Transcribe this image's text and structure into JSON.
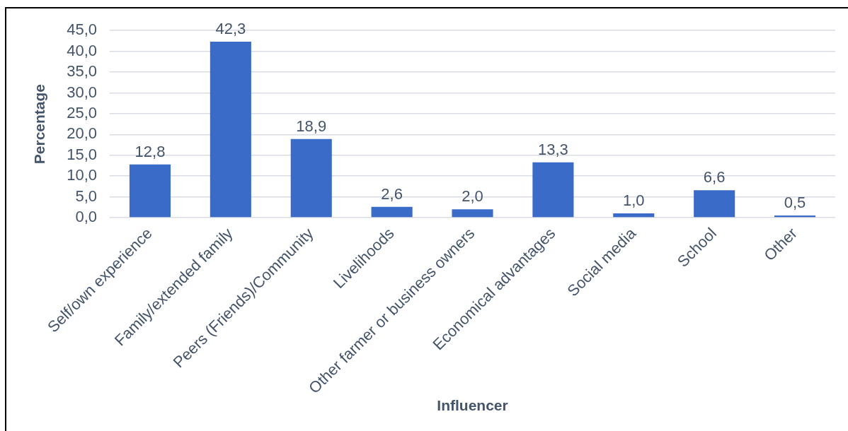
{
  "chart_data": {
    "type": "bar",
    "xlabel": "Influencer",
    "ylabel": "Percentage",
    "categories": [
      "Self/own experience",
      "Family/extended family",
      "Peers (Friends)/Community",
      "Livelihoods",
      "Other farmer or business owners",
      "Economical advantages",
      "Social media",
      "School",
      "Other"
    ],
    "values": [
      12.8,
      42.3,
      18.9,
      2.6,
      2.0,
      13.3,
      1.0,
      6.6,
      0.5
    ],
    "value_labels": [
      "12,8",
      "42,3",
      "18,9",
      "2,6",
      "2,0",
      "13,3",
      "1,0",
      "6,6",
      "0,5"
    ],
    "color": "#3a6bc9",
    "ylim": [
      0,
      45
    ],
    "yticks": [
      {
        "value": 0,
        "label": "0,0"
      },
      {
        "value": 5,
        "label": "5,0"
      },
      {
        "value": 10,
        "label": "10,0"
      },
      {
        "value": 15,
        "label": "15,0"
      },
      {
        "value": 20,
        "label": "20,0"
      },
      {
        "value": 25,
        "label": "25,0"
      },
      {
        "value": 30,
        "label": "30,0"
      },
      {
        "value": 35,
        "label": "35,0"
      },
      {
        "value": 40,
        "label": "40,0"
      },
      {
        "value": 45,
        "label": "45,0"
      }
    ],
    "grid": "y"
  }
}
